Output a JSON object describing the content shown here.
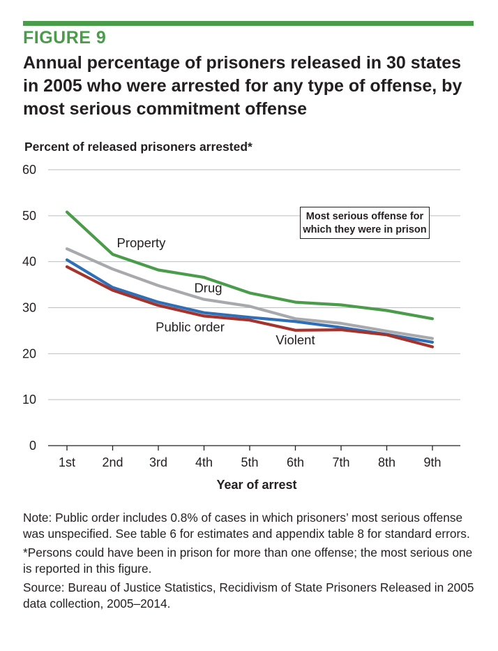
{
  "figure": {
    "label": "FIGURE 9",
    "title": "Annual percentage of prisoners released in 30 states in 2005 who were arrested for any type of offense, by most serious commitment offense"
  },
  "chart_data": {
    "type": "line",
    "title": "Annual percentage of prisoners released in 30 states in 2005 who were arrested for any type of offense, by most serious commitment offense",
    "ylabel": "Percent of released prisoners arrested*",
    "xlabel": "Year of arrest",
    "categories": [
      "1st",
      "2nd",
      "3rd",
      "4th",
      "5th",
      "6th",
      "7th",
      "8th",
      "9th"
    ],
    "ylim": [
      0,
      60
    ],
    "yticks": [
      0,
      10,
      20,
      30,
      40,
      50,
      60
    ],
    "grid": true,
    "legend_title": "Most serious offense for which they were in prison",
    "series": [
      {
        "name": "Property",
        "color": "#4a9c4b",
        "values": [
          50.8,
          41.6,
          38.2,
          36.6,
          33.2,
          31.2,
          30.6,
          29.4,
          27.6
        ]
      },
      {
        "name": "Drug",
        "color": "#a7a9ac",
        "values": [
          42.8,
          38.4,
          34.8,
          31.8,
          30.3,
          27.6,
          26.6,
          24.9,
          23.3
        ]
      },
      {
        "name": "Public order",
        "color": "#2e6fb7",
        "values": [
          40.4,
          34.4,
          31.2,
          28.9,
          27.9,
          27.0,
          25.7,
          24.2,
          22.5
        ]
      },
      {
        "name": "Violent",
        "color": "#a6332b",
        "values": [
          38.9,
          33.8,
          30.5,
          28.2,
          27.3,
          25.1,
          25.2,
          24.1,
          21.5
        ]
      }
    ]
  },
  "notes": {
    "note": "Note: Public order includes 0.8% of cases in which prisoners’ most serious offense was unspecified. See table 6 for estimates and appendix table 8 for standard errors.",
    "footnote": "*Persons could have been in prison for more than one offense; the most serious one is reported in this figure.",
    "source": "Source: Bureau of Justice Statistics, Recidivism of State Prisoners Released in 2005 data collection, 2005–2014."
  }
}
